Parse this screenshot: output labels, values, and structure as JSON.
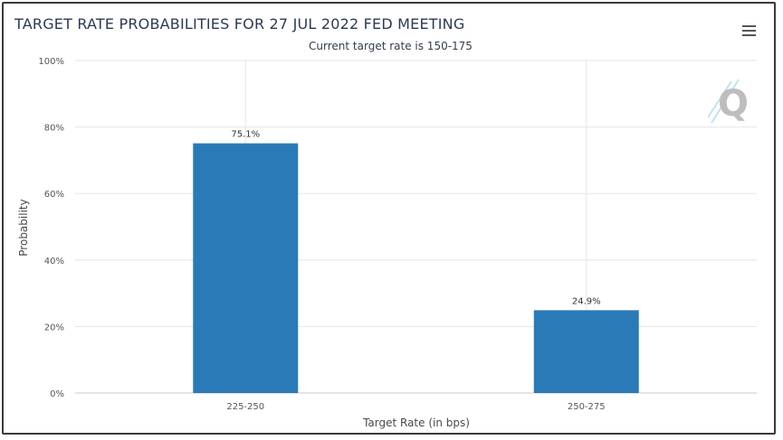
{
  "header": {
    "menu_icon": "hamburger-menu-icon"
  },
  "watermark": {
    "icon": "q-logo-icon",
    "letter": "Q"
  },
  "chart_data": {
    "type": "bar",
    "title": "TARGET RATE PROBABILITIES FOR 27 JUL 2022 FED MEETING",
    "subtitle": "Current target rate is 150-175",
    "categories": [
      "225-250",
      "250-275"
    ],
    "values": [
      75.1,
      24.9
    ],
    "data_labels": [
      "75.1%",
      "24.9%"
    ],
    "xlabel": "Target Rate (in bps)",
    "ylabel": "Probability",
    "ylim": [
      0,
      100
    ],
    "yticks": [
      0,
      20,
      40,
      60,
      80,
      100
    ],
    "ytick_labels": [
      "0%",
      "20%",
      "40%",
      "60%",
      "80%",
      "100%"
    ],
    "grid": true,
    "bar_color": "#2a7ab8"
  }
}
